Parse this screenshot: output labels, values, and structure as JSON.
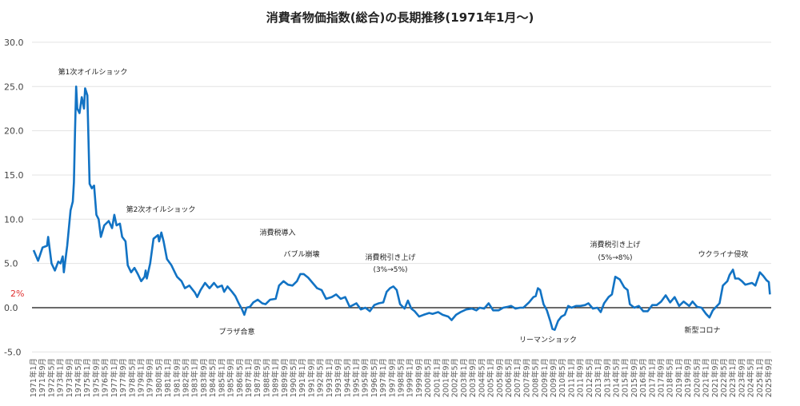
{
  "chart_data": {
    "type": "line",
    "title": "消費者物価指数(総合)の長期推移(1971年1月～)",
    "xlabel": "",
    "ylabel": "",
    "ylim": [
      -5,
      30
    ],
    "yticks": [
      "30.0",
      "25.0",
      "20.0",
      "15.0",
      "10.0",
      "5.0",
      "0.0",
      "-5.0"
    ],
    "ytick_values": [
      30,
      25,
      20,
      15,
      10,
      5,
      0,
      -5
    ],
    "grid": true,
    "reference_line": {
      "value": 2,
      "label": "2%",
      "color": "#e03030"
    },
    "series_color": "#1273c4",
    "xticks": [
      "1971年1月",
      "1971年9月",
      "1972年5月",
      "1973年1月",
      "1973年9月",
      "1974年5月",
      "1975年1月",
      "1975年9月",
      "1976年5月",
      "1977年1月",
      "1977年9月",
      "1978年5月",
      "1979年1月",
      "1979年9月",
      "1980年5月",
      "1981年1月",
      "1981年9月",
      "1982年5月",
      "1983年1月",
      "1983年9月",
      "1984年5月",
      "1985年1月",
      "1985年9月",
      "1986年5月",
      "1987年1月",
      "1987年9月",
      "1988年5月",
      "1989年1月",
      "1989年9月",
      "1990年5月",
      "1991年1月",
      "1991年9月",
      "1992年5月",
      "1993年1月",
      "1993年9月",
      "1994年5月",
      "1995年1月",
      "1995年9月",
      "1996年5月",
      "1997年1月",
      "1997年9月",
      "1998年5月",
      "1999年1月",
      "1999年9月",
      "2000年5月",
      "2001年1月",
      "2001年9月",
      "2002年5月",
      "2003年1月",
      "2003年9月",
      "2004年5月",
      "2005年1月",
      "2005年9月",
      "2006年5月",
      "2007年1月",
      "2007年9月",
      "2008年5月",
      "2009年1月",
      "2009年9月",
      "2010年5月",
      "2011年1月",
      "2011年9月",
      "2012年5月",
      "2013年1月",
      "2013年9月",
      "2014年5月",
      "2015年1月",
      "2015年9月",
      "2016年5月",
      "2017年1月",
      "2017年9月",
      "2018年5月",
      "2019年1月",
      "2019年9月",
      "2020年5月",
      "2021年1月",
      "2021年9月",
      "2022年5月",
      "2023年1月",
      "2023年9月",
      "2024年5月",
      "2025年1月",
      "2025年9月"
    ],
    "x": [
      "1971-01",
      "1971-05",
      "1971-09",
      "1972-01",
      "1972-02",
      "1972-05",
      "1972-08",
      "1972-11",
      "1973-01",
      "1973-03",
      "1973-04",
      "1973-07",
      "1973-10",
      "1973-12",
      "1974-01",
      "1974-02",
      "1974-03",
      "1974-04",
      "1974-06",
      "1974-08",
      "1974-10",
      "1974-11",
      "1975-01",
      "1975-03",
      "1975-05",
      "1975-07",
      "1975-09",
      "1975-11",
      "1976-01",
      "1976-04",
      "1976-08",
      "1976-11",
      "1977-01",
      "1977-03",
      "1977-06",
      "1977-08",
      "1977-11",
      "1978-01",
      "1978-04",
      "1978-07",
      "1978-10",
      "1979-01",
      "1979-04",
      "1979-05",
      "1979-06",
      "1979-09",
      "1979-12",
      "1980-04",
      "1980-05",
      "1980-07",
      "1980-09",
      "1980-12",
      "1981-04",
      "1981-07",
      "1981-09",
      "1982-01",
      "1982-04",
      "1982-08",
      "1983-01",
      "1983-03",
      "1983-06",
      "1983-10",
      "1984-02",
      "1984-06",
      "1984-09",
      "1985-01",
      "1985-03",
      "1985-06",
      "1985-10",
      "1986-01",
      "1986-04",
      "1986-07",
      "1986-09",
      "1986-11",
      "1987-02",
      "1987-05",
      "1987-09",
      "1988-01",
      "1988-04",
      "1988-08",
      "1989-01",
      "1989-04",
      "1989-08",
      "1989-12",
      "1990-04",
      "1990-08",
      "1990-11",
      "1991-02",
      "1991-06",
      "1991-10",
      "1992-02",
      "1992-06",
      "1992-10",
      "1993-03",
      "1993-07",
      "1993-11",
      "1994-03",
      "1994-07",
      "1995-01",
      "1995-05",
      "1995-09",
      "1996-01",
      "1996-05",
      "1996-09",
      "1997-01",
      "1997-04",
      "1997-07",
      "1997-10",
      "1998-01",
      "1998-04",
      "1998-08",
      "1998-11",
      "1999-02",
      "1999-05",
      "1999-09",
      "2000-01",
      "2000-06",
      "2000-09",
      "2001-02",
      "2001-06",
      "2001-11",
      "2002-02",
      "2002-06",
      "2002-10",
      "2003-03",
      "2003-08",
      "2003-12",
      "2004-03",
      "2004-07",
      "2004-11",
      "2005-03",
      "2005-08",
      "2005-12",
      "2006-04",
      "2006-07",
      "2006-11",
      "2007-03",
      "2007-06",
      "2007-11",
      "2008-03",
      "2008-05",
      "2008-07",
      "2008-09",
      "2008-12",
      "2009-03",
      "2009-06",
      "2009-08",
      "2009-10",
      "2010-01",
      "2010-04",
      "2010-07",
      "2010-10",
      "2011-01",
      "2011-05",
      "2011-09",
      "2012-01",
      "2012-04",
      "2012-08",
      "2012-12",
      "2013-03",
      "2013-06",
      "2013-10",
      "2014-01",
      "2014-04",
      "2014-08",
      "2014-12",
      "2015-03",
      "2015-05",
      "2015-09",
      "2016-01",
      "2016-05",
      "2016-09",
      "2017-01",
      "2017-05",
      "2017-09",
      "2018-01",
      "2018-05",
      "2018-09",
      "2019-01",
      "2019-05",
      "2019-10",
      "2020-01",
      "2020-05",
      "2020-09",
      "2021-01",
      "2021-04",
      "2021-07",
      "2021-10",
      "2022-01",
      "2022-04",
      "2022-08",
      "2022-10",
      "2023-01",
      "2023-03",
      "2023-06",
      "2023-09",
      "2023-12",
      "2024-03",
      "2024-06",
      "2024-09",
      "2024-12",
      "2025-01",
      "2025-04",
      "2025-07",
      "2025-09",
      "2025-10"
    ],
    "values": [
      6.5,
      5.3,
      6.8,
      7.0,
      8.0,
      5.0,
      4.2,
      5.2,
      5.0,
      5.8,
      4.0,
      7.0,
      11.0,
      12.0,
      14.2,
      20.0,
      25.0,
      22.5,
      22.0,
      23.8,
      22.5,
      24.8,
      24.0,
      14.0,
      13.5,
      13.8,
      10.5,
      10.0,
      8.0,
      9.3,
      9.8,
      9.0,
      10.5,
      9.3,
      9.5,
      8.0,
      7.5,
      4.8,
      4.0,
      4.5,
      3.8,
      3.0,
      3.5,
      4.2,
      3.3,
      5.0,
      7.8,
      8.2,
      7.5,
      8.5,
      7.5,
      5.5,
      4.8,
      4.0,
      3.5,
      3.0,
      2.2,
      2.5,
      1.7,
      1.2,
      2.0,
      2.8,
      2.2,
      2.8,
      2.3,
      2.5,
      1.8,
      2.4,
      1.8,
      1.3,
      0.5,
      -0.2,
      -0.8,
      0.0,
      0.1,
      0.6,
      0.9,
      0.5,
      0.4,
      0.9,
      1.0,
      2.5,
      3.0,
      2.6,
      2.5,
      3.0,
      3.8,
      3.8,
      3.4,
      2.8,
      2.2,
      2.0,
      1.0,
      1.2,
      1.5,
      1.0,
      1.2,
      0.1,
      0.5,
      -0.2,
      0.0,
      -0.4,
      0.3,
      0.5,
      0.6,
      1.8,
      2.2,
      2.4,
      2.0,
      0.4,
      -0.1,
      0.8,
      -0.1,
      -0.4,
      -1.0,
      -0.8,
      -0.6,
      -0.7,
      -0.5,
      -0.8,
      -1.0,
      -1.4,
      -0.8,
      -0.5,
      -0.2,
      -0.1,
      -0.3,
      0.0,
      -0.1,
      0.5,
      -0.3,
      -0.3,
      0.0,
      0.1,
      0.2,
      -0.1,
      0.0,
      0.0,
      0.6,
      1.2,
      1.3,
      2.2,
      2.0,
      0.4,
      -0.3,
      -1.5,
      -2.4,
      -2.5,
      -1.5,
      -1.0,
      -0.8,
      0.2,
      0.0,
      0.2,
      0.2,
      0.3,
      0.5,
      -0.1,
      0.0,
      -0.5,
      0.5,
      1.2,
      1.5,
      3.5,
      3.2,
      2.3,
      2.0,
      0.4,
      0.0,
      0.2,
      -0.4,
      -0.4,
      0.3,
      0.3,
      0.7,
      1.4,
      0.6,
      1.2,
      0.2,
      0.7,
      0.2,
      0.7,
      0.1,
      0.0,
      -0.7,
      -1.1,
      -0.3,
      0.1,
      0.5,
      2.5,
      3.0,
      3.7,
      4.3,
      3.3,
      3.3,
      3.0,
      2.6,
      2.7,
      2.8,
      2.5,
      3.6,
      4.0,
      3.6,
      3.1,
      2.9,
      1.5
    ],
    "annotations": {
      "oil_shock_1": "第1次オイルショック",
      "oil_shock_2": "第2次オイルショック",
      "consumption_tax_intro": "消費税導入",
      "bubble_burst": "バブル崩壊",
      "tax_hike_1_title": "消費税引き上げ",
      "tax_hike_1_detail": "(3%→5%)",
      "plaza_accord": "プラザ合意",
      "lehman_shock": "リーマンショック",
      "tax_hike_2_title": "消費税引き上げ",
      "tax_hike_2_detail": "(5%→8%)",
      "ukraine_invasion": "ウクライナ侵攻",
      "covid": "新型コロナ"
    }
  }
}
